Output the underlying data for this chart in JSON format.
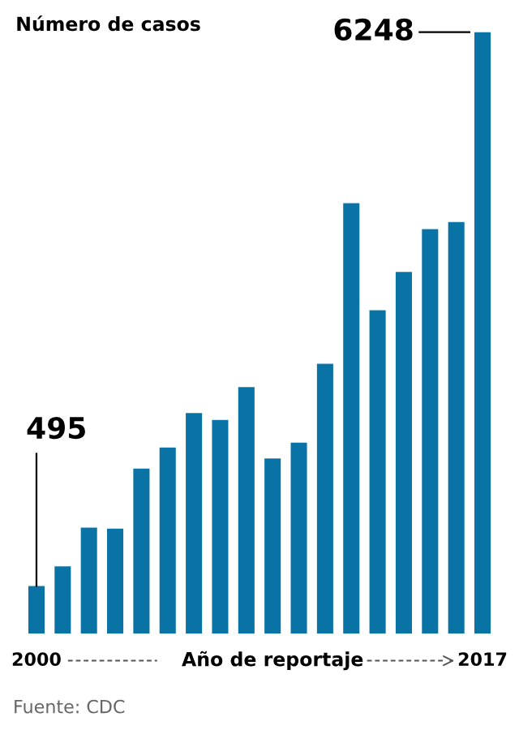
{
  "chart_data": {
    "type": "bar",
    "title": "Número de casos",
    "xlabel": "Año de reportaje",
    "categories": [
      "2000",
      null,
      null,
      null,
      null,
      null,
      null,
      null,
      null,
      null,
      null,
      null,
      null,
      null,
      null,
      null,
      null,
      "2017"
    ],
    "values": [
      495,
      698,
      1102,
      1090,
      1714,
      1933,
      2292,
      2219,
      2561,
      1820,
      1983,
      2804,
      4472,
      3360,
      3758,
      4202,
      4275,
      6248
    ],
    "value_labels": [
      "495",
      null,
      null,
      null,
      null,
      null,
      null,
      null,
      null,
      null,
      null,
      null,
      null,
      null,
      null,
      null,
      null,
      "6248"
    ],
    "color": "#0a73a5",
    "annotations": [
      "Fuente: CDC"
    ]
  }
}
